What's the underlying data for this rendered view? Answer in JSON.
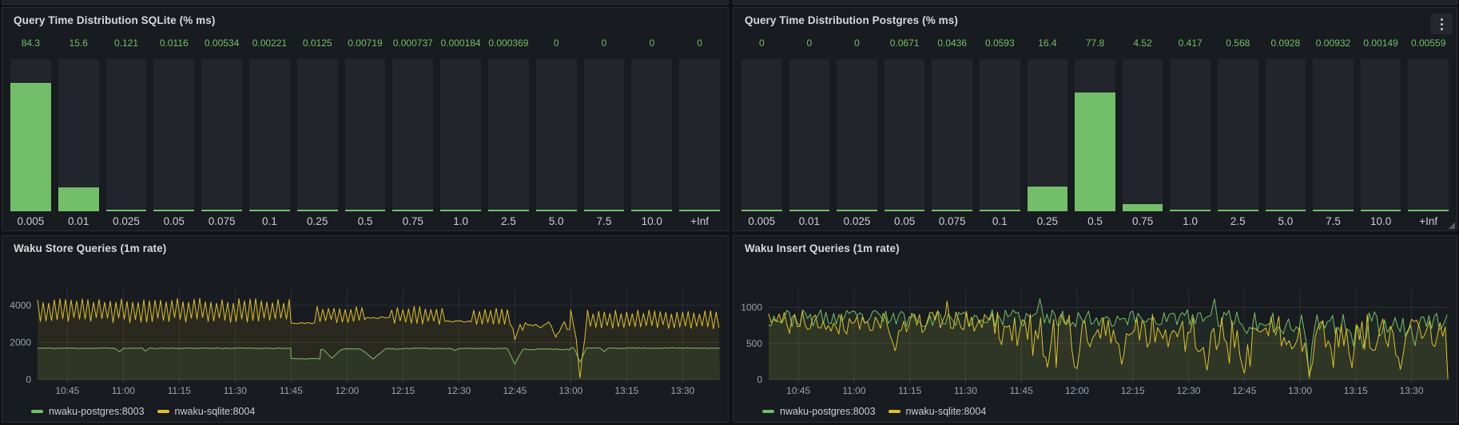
{
  "theme": {
    "page_bg": "#111217",
    "panel_bg": "#181B1F",
    "bar_bg": "#22252B",
    "green": "#73BF69",
    "yellow": "#DEC12B",
    "grid_color": "rgba(204,204,220,0.10)",
    "axis_line_color": "rgba(204,204,220,0.18)"
  },
  "icons": {
    "panel_menu": "kebab-menu-icon",
    "resize_handle": "resize-corner-icon"
  },
  "panels": {
    "sqlite_hist": {
      "title": "Query Time Distribution SQLite (% ms)",
      "chart_data": {
        "type": "bar",
        "title": "Query Time Distribution SQLite (% ms)",
        "categories": [
          "0.005",
          "0.01",
          "0.025",
          "0.05",
          "0.075",
          "0.1",
          "0.25",
          "0.5",
          "0.75",
          "1.0",
          "2.5",
          "5.0",
          "7.5",
          "10.0",
          "+Inf"
        ],
        "values": [
          84.3,
          15.6,
          0.121,
          0.0116,
          0.00534,
          0.00221,
          0.0125,
          0.00719,
          0.000737,
          0.000184,
          0.000369,
          0,
          0,
          0,
          0
        ],
        "value_labels": [
          "84.3",
          "15.6",
          "0.121",
          "0.0116",
          "0.00534",
          "0.00221",
          "0.0125",
          "0.00719",
          "0.000737",
          "0.000184",
          "0.000369",
          "0",
          "0",
          "0",
          "0"
        ],
        "xlabel": "",
        "ylabel": "",
        "ylim": [
          0,
          100
        ],
        "grid": false,
        "bar_color": "#73BF69",
        "value_label_position": "top"
      }
    },
    "postgres_hist": {
      "title": "Query Time Distribution Postgres (% ms)",
      "chart_data": {
        "type": "bar",
        "title": "Query Time Distribution Postgres (% ms)",
        "categories": [
          "0.005",
          "0.01",
          "0.025",
          "0.05",
          "0.075",
          "0.1",
          "0.25",
          "0.5",
          "0.75",
          "1.0",
          "2.5",
          "5.0",
          "7.5",
          "10.0",
          "+Inf"
        ],
        "values": [
          0,
          0,
          0,
          0.0671,
          0.0436,
          0.0593,
          16.4,
          77.8,
          4.52,
          0.417,
          0.568,
          0.0928,
          0.00932,
          0.00149,
          0.00559
        ],
        "value_labels": [
          "0",
          "0",
          "0",
          "0.0671",
          "0.0436",
          "0.0593",
          "16.4",
          "77.8",
          "4.52",
          "0.417",
          "0.568",
          "0.0928",
          "0.00932",
          "0.00149",
          "0.00559"
        ],
        "xlabel": "",
        "ylabel": "",
        "ylim": [
          0,
          100
        ],
        "grid": false,
        "bar_color": "#73BF69",
        "value_label_position": "top"
      }
    },
    "store_ts": {
      "title": "Waku Store Queries (1m rate)",
      "chart_data": {
        "type": "line",
        "title": "Waku Store Queries (1m rate)",
        "x_ticks": [
          "10:45",
          "11:00",
          "11:15",
          "11:30",
          "11:45",
          "12:00",
          "12:15",
          "12:30",
          "12:45",
          "13:00",
          "13:15",
          "13:30"
        ],
        "first_tick_min": 8,
        "tick_step_min": 15,
        "t_max_min": 183,
        "y_ticks": [
          0,
          2000,
          4000
        ],
        "ylim": [
          0,
          4900
        ],
        "grid": true,
        "legend_position": "bottom",
        "series": [
          {
            "name": "nwaku-postgres:8003",
            "color": "#73BF69",
            "seed": 11,
            "summary": "flat ~1700 rps; step down to ~1120 at 11:45-11:53; square dips to ~1110 near 12:00 and 12:10; V-dip to ~820 at 12:45; sharp dip to ~930 at 13:02; back to ~1700",
            "segments": [
              {
                "type": "flat",
                "t": [
                  0,
                  68
                ],
                "base": 1690,
                "amp": 22
              },
              {
                "type": "flat",
                "t": [
                  68,
                  76
                ],
                "base": 1120,
                "amp": 18
              },
              {
                "type": "flat",
                "t": [
                  76,
                  98
                ],
                "base": 1655,
                "amp": 30
              },
              {
                "type": "flat",
                "t": [
                  98,
                  128
                ],
                "base": 1680,
                "amp": 18
              },
              {
                "type": "flat",
                "t": [
                  128,
                  143
                ],
                "base": 1635,
                "amp": 40
              },
              {
                "type": "flat",
                "t": [
                  143,
                  183
                ],
                "base": 1700,
                "amp": 22
              }
            ],
            "events": [
              {
                "t": 22,
                "y": 1500,
                "w": 1.2
              },
              {
                "t": 29,
                "y": 1530,
                "w": 1.0
              },
              {
                "t": 79,
                "y": 1150,
                "w": 2.6
              },
              {
                "t": 90,
                "y": 1110,
                "w": 3.2
              },
              {
                "t": 112,
                "y": 1560,
                "w": 1.0
              },
              {
                "t": 128,
                "y": 820,
                "w": 2.0
              },
              {
                "t": 145.5,
                "y": 930,
                "w": 1.6
              },
              {
                "t": 152,
                "y": 1500,
                "w": 1.0
              }
            ]
          },
          {
            "name": "nwaku-sqlite:8004",
            "color": "#DEC12B",
            "seed": 5,
            "summary": "fast sawtooth 3150-4300 until 11:45; flat ~3040 to 11:52; oscillation 3100-3900 with flat spells ~3330/~3130; noisy 2500-3400 after 12:45 with dips to ~2100; deep spike to ~90 at 13:02; sawtooth 2850-3650 to end",
            "segments": [
              {
                "type": "saw",
                "t": [
                  0,
                  68
                ],
                "base": 3720,
                "amp": 520,
                "period": 1.5
              },
              {
                "type": "flat",
                "t": [
                  68,
                  75
                ],
                "base": 3040,
                "amp": 35
              },
              {
                "type": "saw",
                "t": [
                  75,
                  88
                ],
                "base": 3500,
                "amp": 360,
                "period": 1.5
              },
              {
                "type": "flat",
                "t": [
                  88,
                  95
                ],
                "base": 3330,
                "amp": 60
              },
              {
                "type": "saw",
                "t": [
                  95,
                  110
                ],
                "base": 3450,
                "amp": 400,
                "period": 1.5
              },
              {
                "type": "flat",
                "t": [
                  110,
                  117
                ],
                "base": 3130,
                "amp": 45
              },
              {
                "type": "saw",
                "t": [
                  117,
                  128
                ],
                "base": 3400,
                "amp": 380,
                "period": 1.5
              },
              {
                "type": "noise",
                "t": [
                  128,
                  143
                ],
                "base": 2980,
                "amp": 380
              },
              {
                "type": "saw",
                "t": [
                  143,
                  183
                ],
                "base": 3240,
                "amp": 400,
                "period": 1.5
              }
            ],
            "events": [
              {
                "t": 128,
                "y": 2150,
                "w": 1.3
              },
              {
                "t": 139,
                "y": 2280,
                "w": 1.2
              },
              {
                "t": 145.5,
                "y": 90,
                "w": 1.7
              }
            ]
          }
        ]
      },
      "legend": [
        {
          "label": "nwaku-postgres:8003",
          "color": "#73BF69"
        },
        {
          "label": "nwaku-sqlite:8004",
          "color": "#DEC12B"
        }
      ]
    },
    "insert_ts": {
      "title": "Waku Insert Queries (1m rate)",
      "chart_data": {
        "type": "line",
        "title": "Waku Insert Queries (1m rate)",
        "x_ticks": [
          "10:45",
          "11:00",
          "11:15",
          "11:30",
          "11:45",
          "12:00",
          "12:15",
          "12:30",
          "12:45",
          "13:00",
          "13:15",
          "13:30"
        ],
        "first_tick_min": 8,
        "tick_step_min": 15,
        "t_max_min": 183,
        "y_ticks": [
          0,
          500,
          1000
        ],
        "ylim": [
          0,
          1260
        ],
        "grid": true,
        "legend_position": "bottom",
        "series": [
          {
            "name": "nwaku-postgres:8003",
            "color": "#73BF69",
            "seed": 23,
            "summary": "noisy 700-1000 rps throughout; spikes to ~1120 at 11:50 and 12:37; deep dip to ~20 at 13:02; dips to ~430-470 around 13:17 and 13:31",
            "segments": [
              {
                "type": "noise",
                "t": [
                  0,
                  128
                ],
                "base": 850,
                "amp": 120
              },
              {
                "type": "noise",
                "t": [
                  128,
                  183
                ],
                "base": 800,
                "amp": 170,
                "spikeP": 0.15,
                "spikeAmp": -260
              }
            ],
            "events": [
              {
                "t": 73,
                "y": 1120,
                "w": 1.0
              },
              {
                "t": 120,
                "y": 1120,
                "w": 0.9
              },
              {
                "t": 145.5,
                "y": 20,
                "w": 1.4
              },
              {
                "t": 160,
                "y": 430,
                "w": 1.4
              },
              {
                "t": 174,
                "y": 470,
                "w": 1.3
              }
            ]
          },
          {
            "name": "nwaku-sqlite:8004",
            "color": "#DEC12B",
            "seed": 41,
            "summary": "noisy 500-1000 rps until ~11:45, then increasingly deep dips: ~150-200 near 12:00-12:20, ~80-130 near 12:45-12:55, ~40 at 13:02, ~130-160 near 13:14 and 13:27",
            "segments": [
              {
                "type": "noise",
                "t": [
                  0,
                  62
                ],
                "base": 790,
                "amp": 170
              },
              {
                "type": "noise",
                "t": [
                  62,
                  110
                ],
                "base": 690,
                "amp": 240,
                "spikeP": 0.14,
                "spikeAmp": -380
              },
              {
                "type": "noise",
                "t": [
                  110,
                  183
                ],
                "base": 640,
                "amp": 270,
                "spikeP": 0.2,
                "spikeAmp": -420
              }
            ],
            "events": [
              {
                "t": 34,
                "y": 400,
                "w": 1.4
              },
              {
                "t": 48,
                "y": 1090,
                "w": 0.8
              },
              {
                "t": 75,
                "y": 170,
                "w": 1.8
              },
              {
                "t": 83,
                "y": 150,
                "w": 1.6
              },
              {
                "t": 95,
                "y": 210,
                "w": 1.6
              },
              {
                "t": 118,
                "y": 130,
                "w": 1.6
              },
              {
                "t": 128,
                "y": 90,
                "w": 1.8
              },
              {
                "t": 145.5,
                "y": 40,
                "w": 1.8
              },
              {
                "t": 157,
                "y": 160,
                "w": 1.6
              },
              {
                "t": 170,
                "y": 140,
                "w": 1.6
              }
            ]
          }
        ]
      },
      "legend": [
        {
          "label": "nwaku-postgres:8003",
          "color": "#73BF69"
        },
        {
          "label": "nwaku-sqlite:8004",
          "color": "#DEC12B"
        }
      ]
    }
  }
}
